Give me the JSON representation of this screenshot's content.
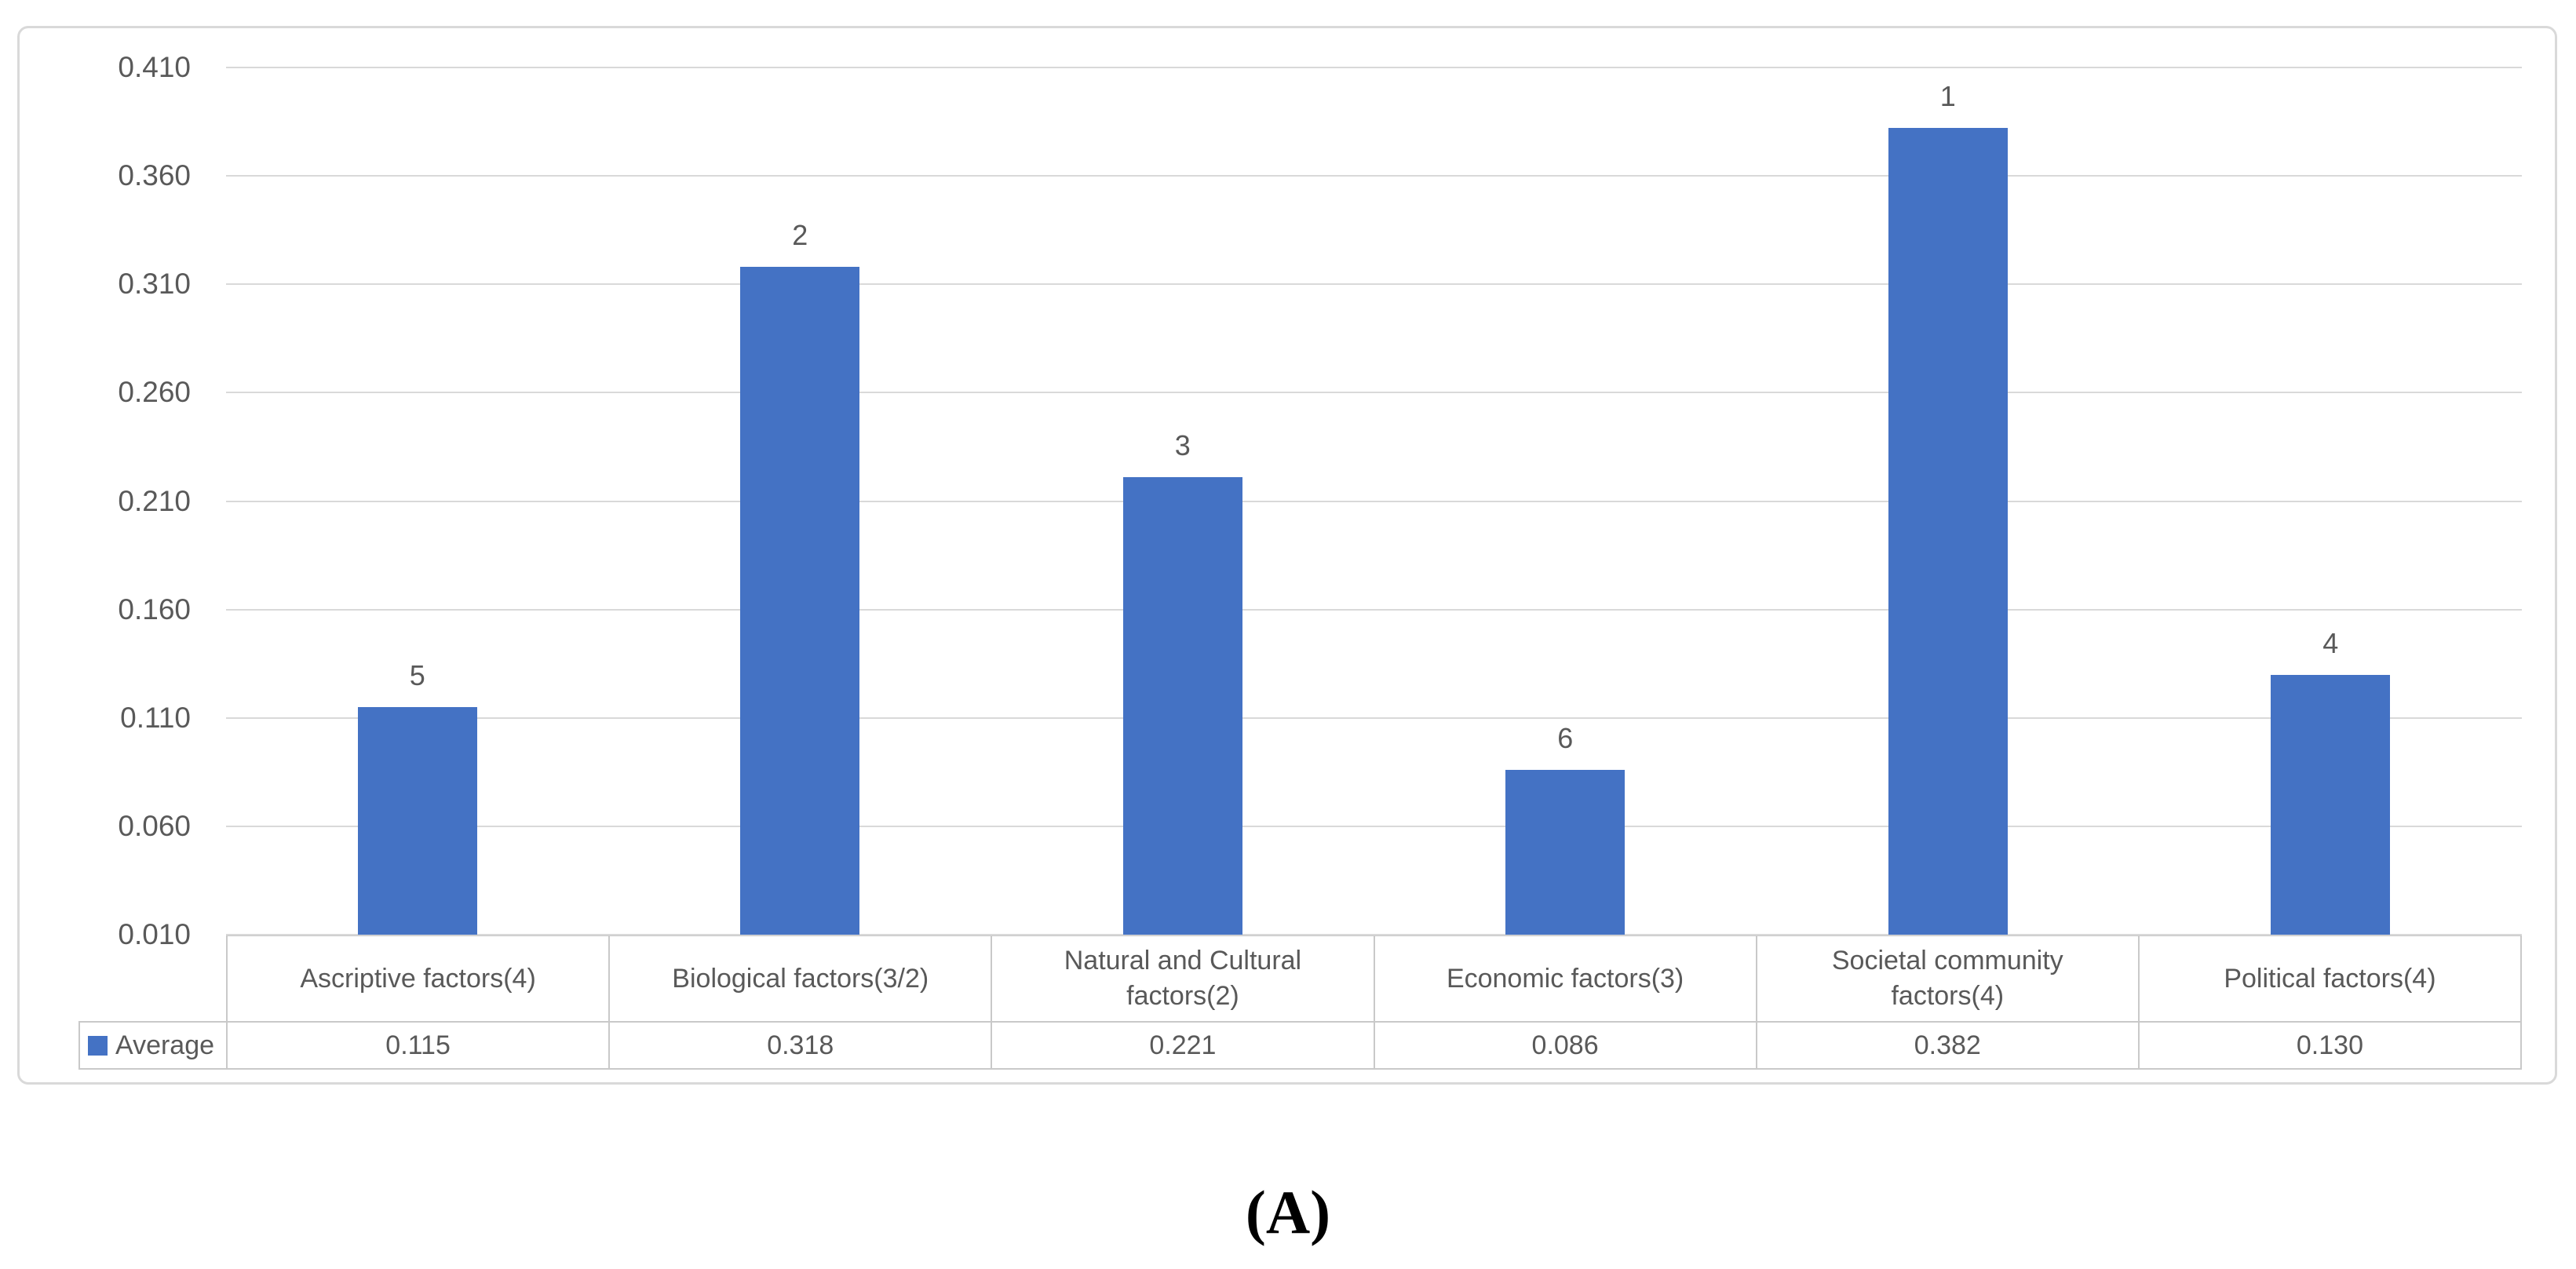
{
  "figure": {
    "caption": "(A)"
  },
  "chart_data": {
    "type": "bar",
    "title": "",
    "xlabel": "",
    "ylabel": "",
    "categories": [
      "Ascriptive factors(4)",
      "Biological factors(3/2)",
      "Natural and Cultural factors(2)",
      "Economic factors(3)",
      "Societal community factors(4)",
      "Political factors(4)"
    ],
    "series": [
      {
        "name": "Average",
        "values": [
          0.115,
          0.318,
          0.221,
          0.086,
          0.382,
          0.13
        ]
      }
    ],
    "value_labels": [
      "0.115",
      "0.318",
      "0.221",
      "0.086",
      "0.382",
      "0.130"
    ],
    "bar_rank_labels": [
      "5",
      "2",
      "3",
      "6",
      "1",
      "4"
    ],
    "y_axis": {
      "min": 0.01,
      "max": 0.41,
      "step": 0.05,
      "tick_labels": [
        "0.010",
        "0.060",
        "0.110",
        "0.160",
        "0.210",
        "0.260",
        "0.310",
        "0.360",
        "0.410"
      ]
    },
    "ylim": [
      0.01,
      0.41
    ],
    "grid": true,
    "legend": {
      "label": "Average",
      "position": "bottom-left-of-data-table"
    },
    "data_table_shown": true,
    "colors": {
      "bar": "#4472C4",
      "gridline": "#D9D9D9",
      "frame_border": "#D9D9D9",
      "table_border": "#C9C9C9",
      "text": "#595959",
      "caption_text": "#000000"
    }
  }
}
